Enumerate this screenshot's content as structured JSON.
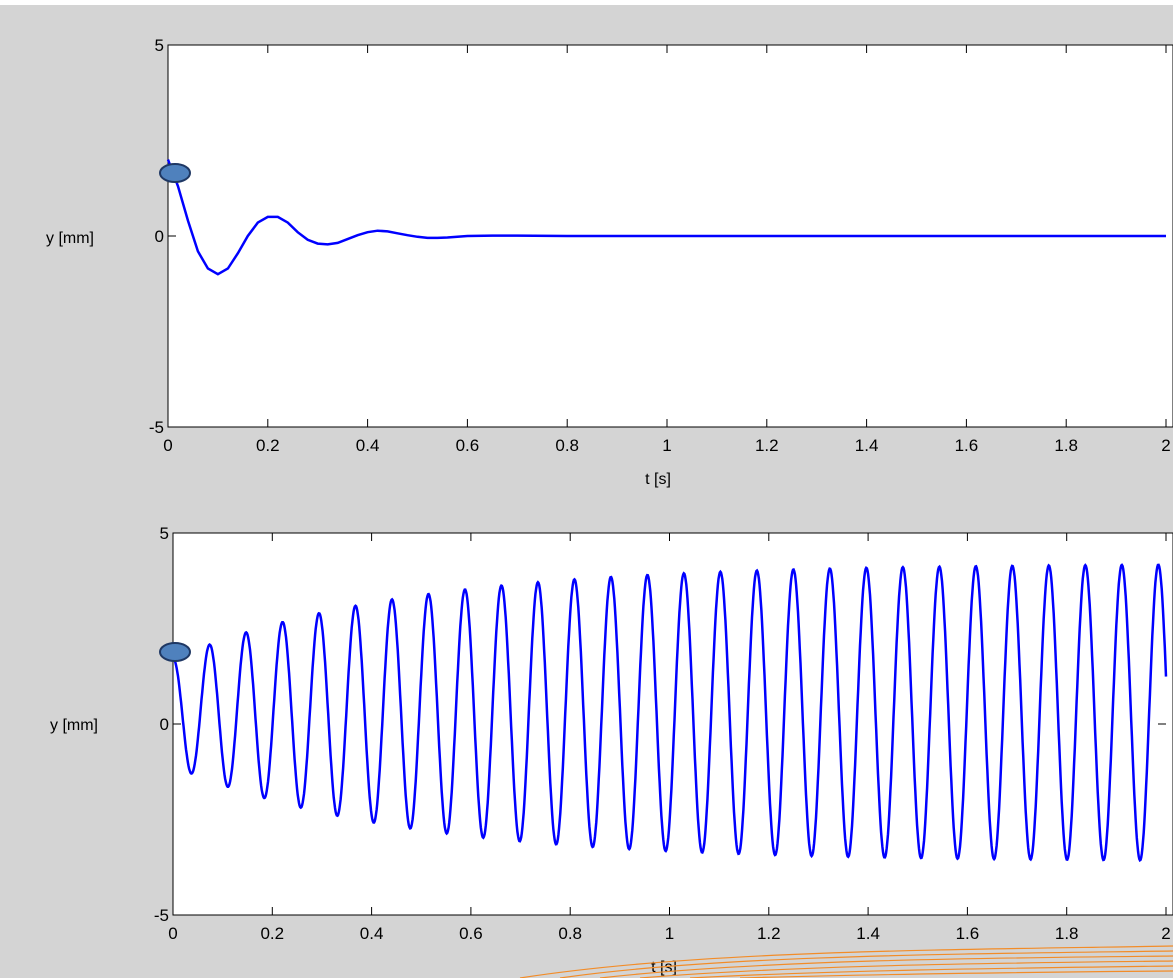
{
  "figure": {
    "background": "#d4d4d4",
    "plot_background": "#ffffff",
    "line_color": "#0000ff",
    "marker_fill": "#4f81bd",
    "marker_stroke": "#1f3864",
    "swoosh_color": "#f28c28"
  },
  "chart_data": [
    {
      "type": "line",
      "name": "top-plot",
      "xlabel": "t [s]",
      "ylabel": "y [mm]",
      "xlim": [
        0,
        2
      ],
      "ylim": [
        -5,
        5
      ],
      "x_ticks": [
        "0",
        "0.2",
        "0.4",
        "0.6",
        "0.8",
        "1",
        "1.2",
        "1.4",
        "1.6",
        "1.8",
        "2"
      ],
      "y_ticks": [
        "-5",
        "0",
        "5"
      ],
      "grid": false,
      "series": [
        {
          "x": [
            0,
            0.02,
            0.04,
            0.06,
            0.08,
            0.1,
            0.12,
            0.14,
            0.16,
            0.18,
            0.2,
            0.22,
            0.24,
            0.26,
            0.28,
            0.3,
            0.32,
            0.34,
            0.36,
            0.38,
            0.4,
            0.42,
            0.44,
            0.46,
            0.48,
            0.5,
            0.52,
            0.54,
            0.56,
            0.58,
            0.6,
            0.65,
            0.7,
            0.8,
            0.9,
            1.0,
            1.1,
            1.2,
            1.3,
            1.4,
            1.5,
            1.6,
            1.7,
            1.8,
            1.9,
            2.0
          ],
          "y": [
            2.0,
            1.3,
            0.4,
            -0.4,
            -0.85,
            -1.0,
            -0.85,
            -0.45,
            0.0,
            0.35,
            0.5,
            0.5,
            0.35,
            0.1,
            -0.1,
            -0.2,
            -0.22,
            -0.18,
            -0.08,
            0.02,
            0.1,
            0.14,
            0.12,
            0.07,
            0.02,
            -0.02,
            -0.05,
            -0.05,
            -0.04,
            -0.02,
            0.0,
            0.01,
            0.01,
            0.0,
            0.0,
            0.0,
            0.0,
            0.0,
            0.0,
            0.0,
            0.0,
            0.0,
            0.0,
            0.0,
            0.0,
            0.0
          ]
        }
      ]
    },
    {
      "type": "line",
      "name": "bottom-plot",
      "xlabel": "t [s]",
      "ylabel": "y [mm]",
      "xlim": [
        0,
        2
      ],
      "ylim": [
        -5,
        5
      ],
      "x_ticks": [
        "0",
        "0.2",
        "0.4",
        "0.6",
        "0.8",
        "1",
        "1.2",
        "1.4",
        "1.6",
        "1.8",
        "2"
      ],
      "y_ticks": [
        "-5",
        "0",
        "5"
      ],
      "grid": false,
      "series": [
        {
          "function": "damped-growth sinusoid",
          "start_value": 1.8,
          "oscillation_period_s": 0.0735,
          "initial_amplitude_mm": 1.4,
          "final_amplitude_mm": 3.9,
          "offset_mm": 0.3
        }
      ]
    }
  ]
}
